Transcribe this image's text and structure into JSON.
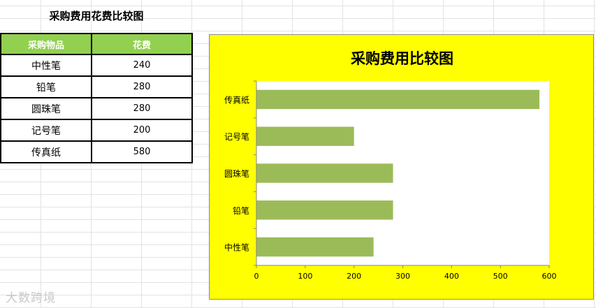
{
  "sheet": {
    "title": "采购费用花费比较图",
    "headers": [
      "采购物品",
      "花费"
    ],
    "rows": [
      [
        "中性笔",
        "240"
      ],
      [
        "铅笔",
        "280"
      ],
      [
        "圆珠笔",
        "280"
      ],
      [
        "记号笔",
        "200"
      ],
      [
        "传真纸",
        "580"
      ]
    ]
  },
  "watermark": "大数跨境",
  "colors": {
    "header_fill": "#92d050",
    "chart_background": "#ffff00",
    "bar": "#9bbb59"
  },
  "chart_data": {
    "type": "bar",
    "orientation": "horizontal",
    "title": "采购费用比较图",
    "categories": [
      "传真纸",
      "记号笔",
      "圆珠笔",
      "铅笔",
      "中性笔"
    ],
    "values": [
      580,
      200,
      280,
      280,
      240
    ],
    "xlim": [
      0,
      600
    ],
    "xticks": [
      "0",
      "100",
      "200",
      "300",
      "400",
      "500",
      "600"
    ],
    "grid": false,
    "legend": "none"
  }
}
